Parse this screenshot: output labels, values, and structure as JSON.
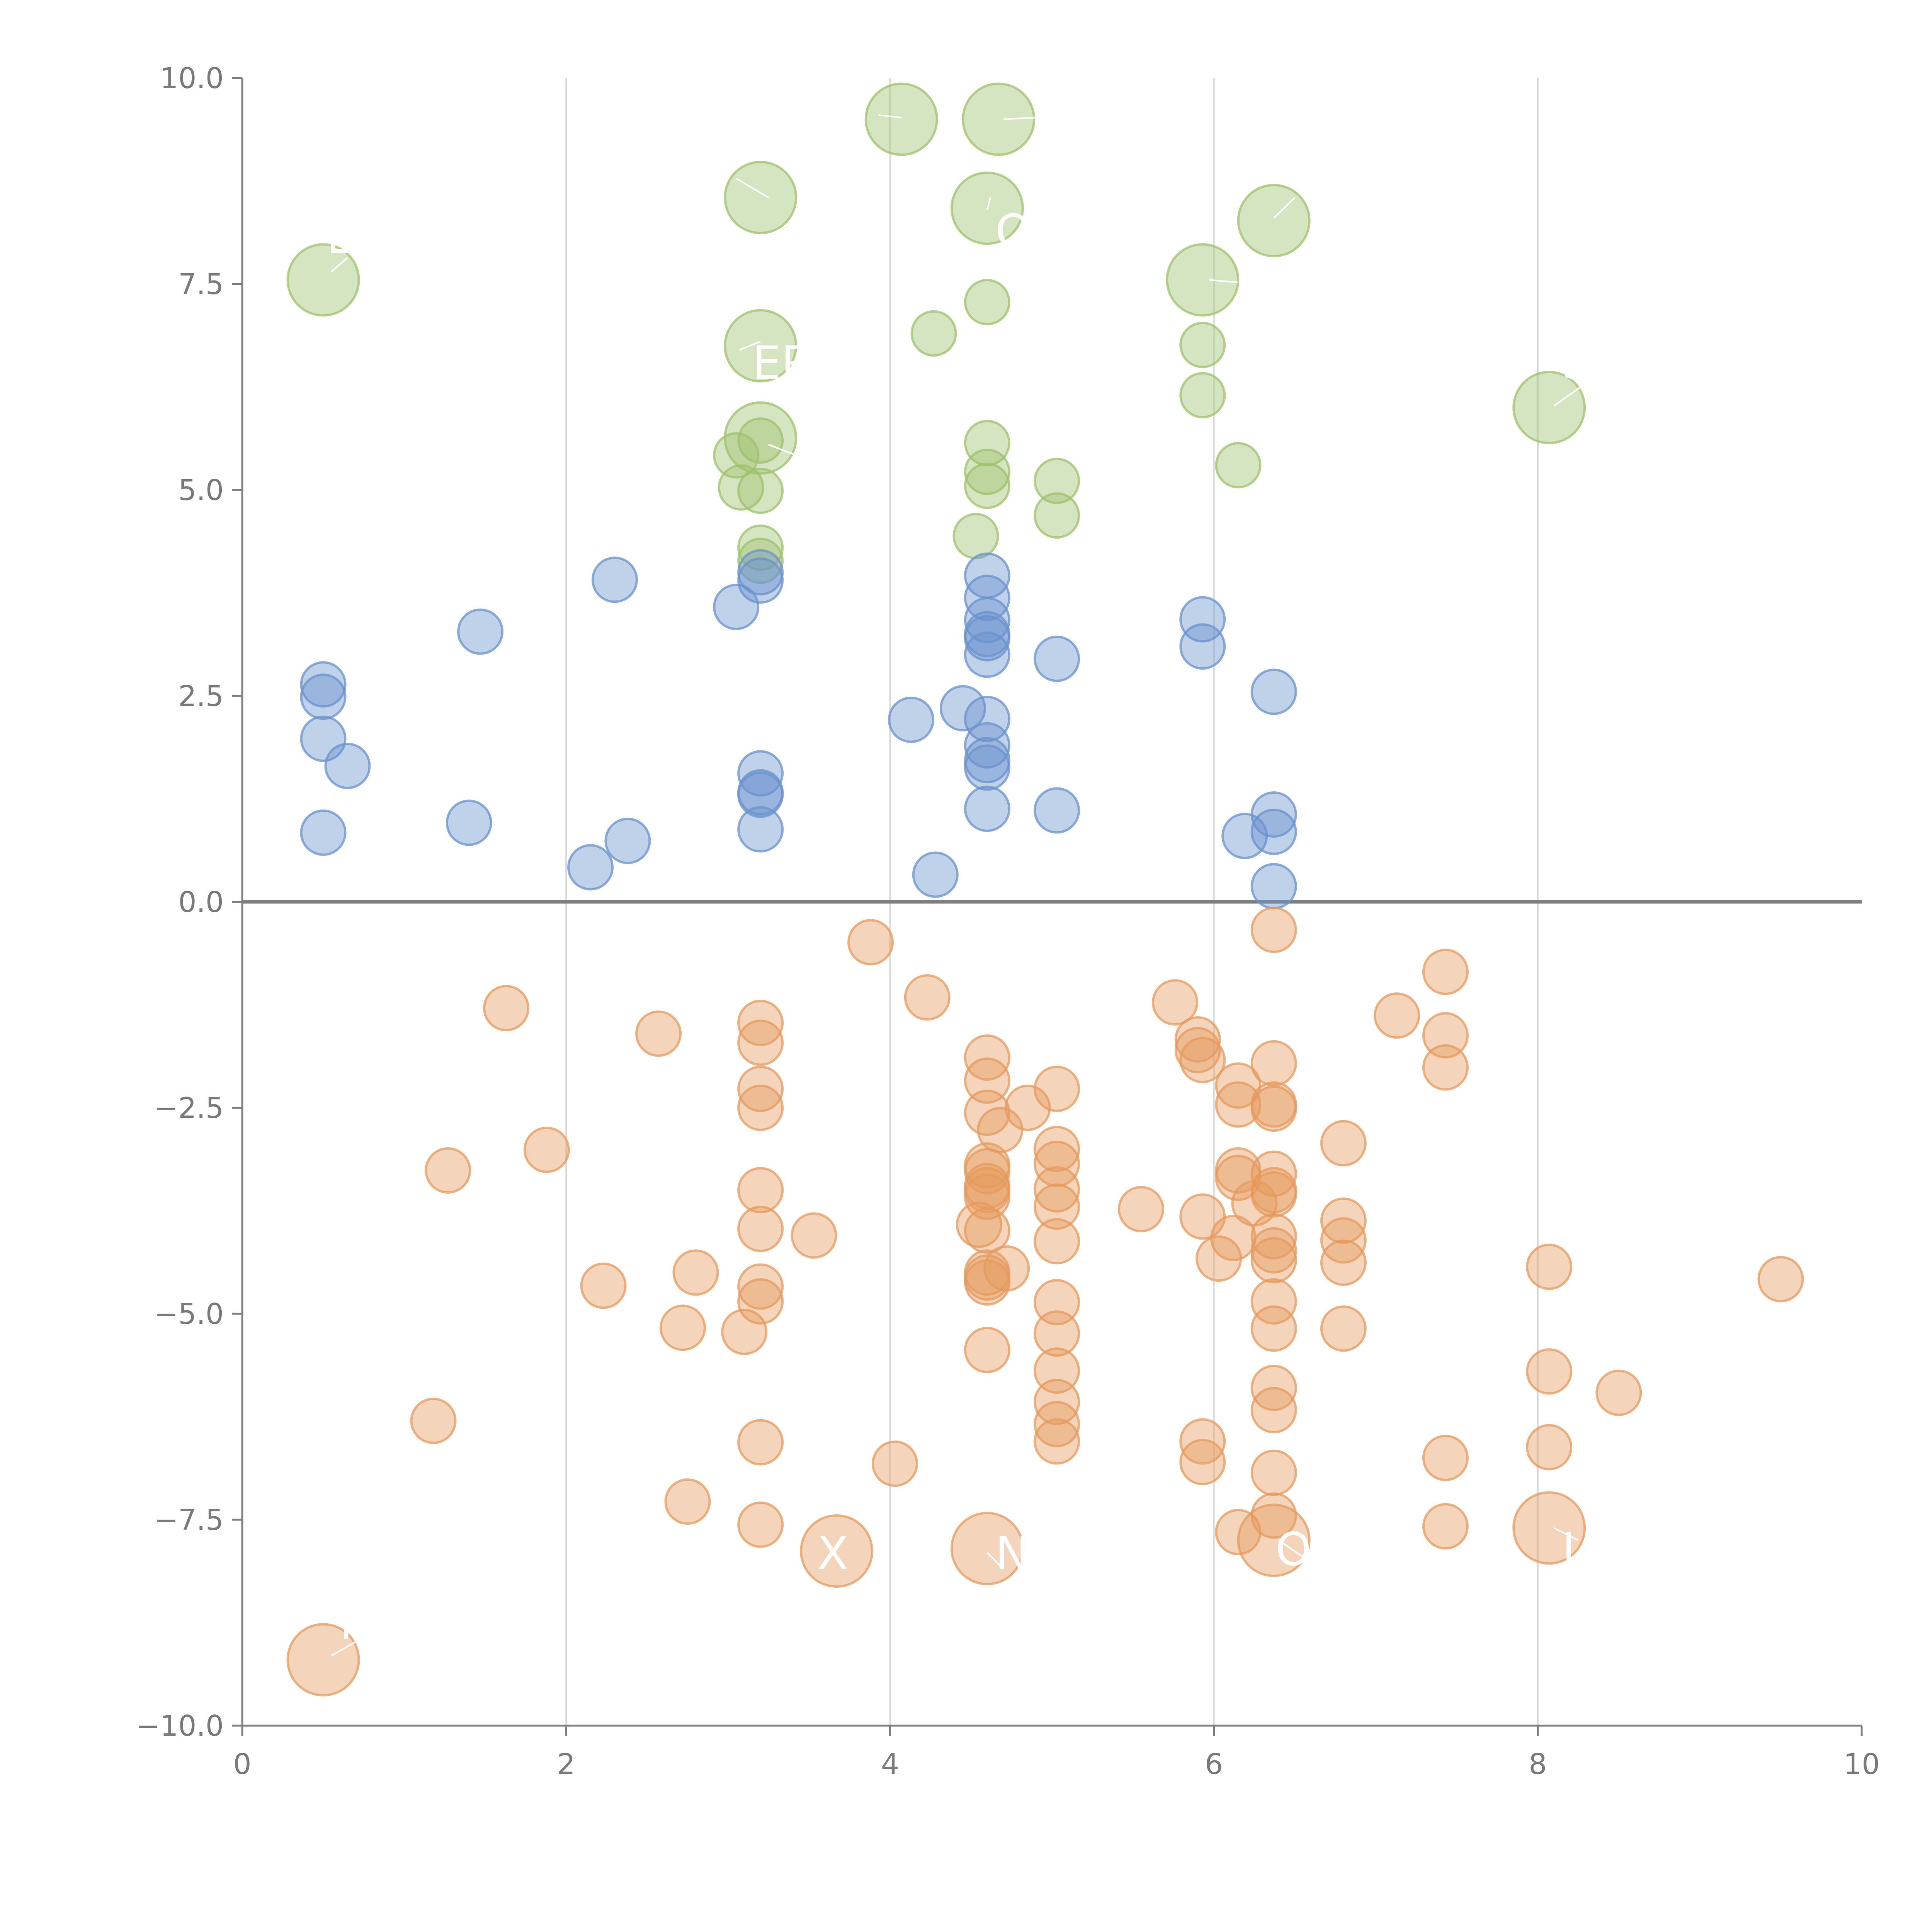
{
  "chart_data": {
    "type": "scatter",
    "title": "",
    "xlabel": "",
    "ylabel": "",
    "xlim": [
      0,
      10
    ],
    "ylim": [
      -10,
      10
    ],
    "grid": "vertical",
    "x_ticks": [
      0,
      2,
      4,
      6,
      8,
      10
    ],
    "x_tick_labels": [
      "0",
      "2",
      "4",
      "6",
      "8",
      "10"
    ],
    "y_ticks": [
      10,
      7.5,
      5,
      2.5,
      0,
      -2.5,
      -5,
      -7.5,
      -10
    ],
    "y_tick_labels": [
      "10.0",
      "7.5",
      "5.0",
      "2.5",
      "0.0",
      "−2.5",
      "−5.0",
      "−7.5",
      "−10.0"
    ],
    "reference_line_y": 0,
    "colors": {
      "green": "#9dc16b",
      "blue": "#6a92cc",
      "orange": "#e59a5c"
    },
    "series": [
      {
        "name": "green",
        "color": "#9dc16b",
        "size_small": 1,
        "size_large": 2,
        "points": [
          [
            0.5,
            7.55,
            2
          ],
          [
            3.2,
            8.55,
            2
          ],
          [
            4.07,
            9.5,
            2
          ],
          [
            4.67,
            9.5,
            2
          ],
          [
            4.6,
            8.42,
            2
          ],
          [
            6.37,
            8.27,
            2
          ],
          [
            5.93,
            7.55,
            2
          ],
          [
            3.2,
            6.75,
            2
          ],
          [
            3.2,
            5.63,
            2
          ],
          [
            8.07,
            6.0,
            2
          ],
          [
            4.27,
            6.9,
            1
          ],
          [
            4.6,
            7.28,
            1
          ],
          [
            5.93,
            6.76,
            1
          ],
          [
            5.93,
            6.15,
            1
          ],
          [
            6.15,
            5.3,
            1
          ],
          [
            3.2,
            5.6,
            1
          ],
          [
            3.05,
            5.42,
            1
          ],
          [
            3.08,
            5.03,
            1
          ],
          [
            3.2,
            4.99,
            1
          ],
          [
            3.2,
            4.3,
            1
          ],
          [
            3.2,
            4.14,
            1
          ],
          [
            4.6,
            5.57,
            1
          ],
          [
            4.6,
            5.22,
            1
          ],
          [
            4.6,
            5.05,
            1
          ],
          [
            5.03,
            5.11,
            1
          ],
          [
            5.03,
            4.69,
            1
          ],
          [
            4.53,
            4.44,
            1
          ]
        ]
      },
      {
        "name": "blue",
        "color": "#6a92cc",
        "size_small": 1,
        "size_large": 2,
        "points": [
          [
            0.5,
            2.64,
            1
          ],
          [
            0.5,
            2.49,
            1
          ],
          [
            0.5,
            1.98,
            1
          ],
          [
            0.65,
            1.65,
            1
          ],
          [
            0.5,
            0.84,
            1
          ],
          [
            1.47,
            3.28,
            1
          ],
          [
            1.4,
            0.96,
            1
          ],
          [
            2.3,
            3.91,
            1
          ],
          [
            2.15,
            0.42,
            1
          ],
          [
            2.38,
            0.74,
            1
          ],
          [
            3.05,
            3.58,
            1
          ],
          [
            3.2,
            4.0,
            1
          ],
          [
            3.2,
            3.9,
            1
          ],
          [
            3.2,
            1.56,
            1
          ],
          [
            3.2,
            1.33,
            1
          ],
          [
            3.2,
            1.3,
            1
          ],
          [
            3.2,
            0.88,
            1
          ],
          [
            4.13,
            2.21,
            1
          ],
          [
            4.45,
            2.35,
            1
          ],
          [
            4.28,
            0.33,
            1
          ],
          [
            4.6,
            3.96,
            1
          ],
          [
            4.6,
            3.69,
            1
          ],
          [
            4.6,
            3.42,
            1
          ],
          [
            4.6,
            3.25,
            1
          ],
          [
            4.6,
            3.2,
            1
          ],
          [
            4.6,
            3.0,
            1
          ],
          [
            4.6,
            2.22,
            1
          ],
          [
            4.6,
            1.9,
            1
          ],
          [
            4.6,
            1.72,
            1
          ],
          [
            4.6,
            1.63,
            1
          ],
          [
            4.6,
            1.13,
            1
          ],
          [
            5.03,
            2.95,
            1
          ],
          [
            5.03,
            1.11,
            1
          ],
          [
            5.93,
            3.43,
            1
          ],
          [
            5.93,
            3.1,
            1
          ],
          [
            6.37,
            2.55,
            1
          ],
          [
            6.37,
            1.06,
            1
          ],
          [
            6.37,
            0.85,
            1
          ],
          [
            6.19,
            0.8,
            1
          ],
          [
            6.37,
            0.19,
            1
          ]
        ]
      },
      {
        "name": "orange",
        "color": "#e59a5c",
        "size_small": 1,
        "size_large": 2,
        "points": [
          [
            0.5,
            -9.2,
            2
          ],
          [
            3.67,
            -7.88,
            2
          ],
          [
            4.6,
            -7.85,
            2
          ],
          [
            6.37,
            -7.75,
            2
          ],
          [
            8.07,
            -7.6,
            2
          ],
          [
            6.37,
            -0.34,
            1
          ],
          [
            3.88,
            -0.49,
            1
          ],
          [
            4.23,
            -1.16,
            1
          ],
          [
            1.63,
            -1.29,
            1
          ],
          [
            2.57,
            -1.6,
            1
          ],
          [
            3.2,
            -1.47,
            1
          ],
          [
            3.2,
            -1.71,
            1
          ],
          [
            3.2,
            -2.27,
            1
          ],
          [
            3.2,
            -2.5,
            1
          ],
          [
            3.2,
            -3.5,
            1
          ],
          [
            3.2,
            -3.97,
            1
          ],
          [
            3.2,
            -4.67,
            1
          ],
          [
            3.2,
            -4.85,
            1
          ],
          [
            3.2,
            -6.56,
            1
          ],
          [
            3.2,
            -7.56,
            1
          ],
          [
            1.27,
            -3.26,
            1
          ],
          [
            1.88,
            -3.01,
            1
          ],
          [
            2.23,
            -4.66,
            1
          ],
          [
            2.8,
            -4.5,
            1
          ],
          [
            2.72,
            -5.17,
            1
          ],
          [
            3.1,
            -5.22,
            1
          ],
          [
            3.53,
            -4.05,
            1
          ],
          [
            1.18,
            -6.3,
            1
          ],
          [
            2.75,
            -7.28,
            1
          ],
          [
            4.03,
            -6.82,
            1
          ],
          [
            4.6,
            -1.89,
            1
          ],
          [
            4.6,
            -2.17,
            1
          ],
          [
            4.6,
            -2.56,
            1
          ],
          [
            4.68,
            -2.77,
            1
          ],
          [
            4.85,
            -2.5,
            1
          ],
          [
            4.6,
            -3.2,
            1
          ],
          [
            4.6,
            -3.27,
            1
          ],
          [
            4.6,
            -3.45,
            1
          ],
          [
            4.6,
            -3.58,
            1
          ],
          [
            4.6,
            -3.5,
            1
          ],
          [
            4.55,
            -3.92,
            1
          ],
          [
            4.6,
            -3.99,
            1
          ],
          [
            4.6,
            -4.5,
            1
          ],
          [
            4.6,
            -4.62,
            1
          ],
          [
            4.6,
            -4.56,
            1
          ],
          [
            4.72,
            -4.45,
            1
          ],
          [
            4.6,
            -5.44,
            1
          ],
          [
            5.03,
            -2.27,
            1
          ],
          [
            5.03,
            -3.0,
            1
          ],
          [
            5.03,
            -3.18,
            1
          ],
          [
            5.03,
            -3.49,
            1
          ],
          [
            5.03,
            -3.7,
            1
          ],
          [
            5.03,
            -4.12,
            1
          ],
          [
            5.03,
            -4.86,
            1
          ],
          [
            5.03,
            -5.24,
            1
          ],
          [
            5.03,
            -5.69,
            1
          ],
          [
            5.03,
            -6.07,
            1
          ],
          [
            5.03,
            -6.34,
            1
          ],
          [
            5.03,
            -6.55,
            1
          ],
          [
            5.55,
            -3.73,
            1
          ],
          [
            5.76,
            -1.22,
            1
          ],
          [
            5.9,
            -1.67,
            1
          ],
          [
            5.9,
            -1.8,
            1
          ],
          [
            5.93,
            -1.92,
            1
          ],
          [
            5.93,
            -3.82,
            1
          ],
          [
            5.93,
            -6.55,
            1
          ],
          [
            5.93,
            -6.8,
            1
          ],
          [
            6.15,
            -2.23,
            1
          ],
          [
            6.15,
            -2.46,
            1
          ],
          [
            6.15,
            -3.26,
            1
          ],
          [
            6.15,
            -3.35,
            1
          ],
          [
            6.25,
            -3.66,
            1
          ],
          [
            6.12,
            -4.08,
            1
          ],
          [
            6.03,
            -4.33,
            1
          ],
          [
            6.15,
            -7.65,
            1
          ],
          [
            6.37,
            -1.96,
            1
          ],
          [
            6.37,
            -2.46,
            1
          ],
          [
            6.37,
            -2.51,
            1
          ],
          [
            6.37,
            -3.3,
            1
          ],
          [
            6.37,
            -3.5,
            1
          ],
          [
            6.37,
            -3.55,
            1
          ],
          [
            6.37,
            -4.06,
            1
          ],
          [
            6.37,
            -4.23,
            1
          ],
          [
            6.37,
            -4.35,
            1
          ],
          [
            6.37,
            -4.85,
            1
          ],
          [
            6.37,
            -5.18,
            1
          ],
          [
            6.37,
            -5.9,
            1
          ],
          [
            6.37,
            -6.17,
            1
          ],
          [
            6.37,
            -6.93,
            1
          ],
          [
            6.37,
            -7.45,
            1
          ],
          [
            6.8,
            -2.93,
            1
          ],
          [
            6.8,
            -3.87,
            1
          ],
          [
            6.8,
            -4.11,
            1
          ],
          [
            6.8,
            -4.38,
            1
          ],
          [
            6.8,
            -5.18,
            1
          ],
          [
            7.13,
            -1.38,
            1
          ],
          [
            7.43,
            -0.85,
            1
          ],
          [
            7.43,
            -1.62,
            1
          ],
          [
            7.43,
            -2.01,
            1
          ],
          [
            7.43,
            -6.75,
            1
          ],
          [
            7.43,
            -7.58,
            1
          ],
          [
            8.07,
            -4.43,
            1
          ],
          [
            8.07,
            -5.7,
            1
          ],
          [
            8.07,
            -6.62,
            1
          ],
          [
            8.5,
            -5.96,
            1
          ],
          [
            9.5,
            -4.58,
            1
          ]
        ]
      }
    ],
    "annotations": [
      {
        "text": "EN",
        "x": 0.52,
        "y": 7.88
      },
      {
        "text": "O",
        "x": 4.65,
        "y": 7.95
      },
      {
        "text": "ER",
        "x": 3.15,
        "y": 6.35
      },
      {
        "text": "S",
        "x": 8.15,
        "y": 6.35
      },
      {
        "text": "M",
        "x": 0.6,
        "y": -8.95
      },
      {
        "text": "X",
        "x": 3.55,
        "y": -8.1
      },
      {
        "text": "N",
        "x": 4.65,
        "y": -8.1
      },
      {
        "text": "O",
        "x": 6.38,
        "y": -8.05
      },
      {
        "text": "J",
        "x": 8.15,
        "y": -8.05
      }
    ],
    "leaders": [
      {
        "from": [
          0.55,
          7.65
        ],
        "to": [
          0.65,
          7.82
        ]
      },
      {
        "from": [
          3.05,
          8.78
        ],
        "to": [
          3.25,
          8.55
        ]
      },
      {
        "from": [
          3.93,
          9.55
        ],
        "to": [
          4.07,
          9.52
        ]
      },
      {
        "from": [
          4.7,
          9.5
        ],
        "to": [
          4.9,
          9.52
        ]
      },
      {
        "from": [
          4.6,
          8.4
        ],
        "to": [
          4.62,
          8.55
        ]
      },
      {
        "from": [
          6.37,
          8.3
        ],
        "to": [
          6.5,
          8.55
        ]
      },
      {
        "from": [
          5.97,
          7.55
        ],
        "to": [
          6.15,
          7.52
        ]
      },
      {
        "from": [
          3.07,
          6.7
        ],
        "to": [
          3.2,
          6.8
        ]
      },
      {
        "from": [
          3.25,
          5.55
        ],
        "to": [
          3.45,
          5.4
        ]
      },
      {
        "from": [
          8.1,
          6.02
        ],
        "to": [
          8.3,
          6.3
        ]
      },
      {
        "from": [
          0.55,
          -9.15
        ],
        "to": [
          0.73,
          -8.95
        ]
      },
      {
        "from": [
          4.6,
          -7.9
        ],
        "to": [
          4.7,
          -8.1
        ]
      },
      {
        "from": [
          6.4,
          -7.75
        ],
        "to": [
          6.55,
          -7.95
        ]
      },
      {
        "from": [
          8.1,
          -7.6
        ],
        "to": [
          8.25,
          -7.75
        ]
      }
    ]
  }
}
